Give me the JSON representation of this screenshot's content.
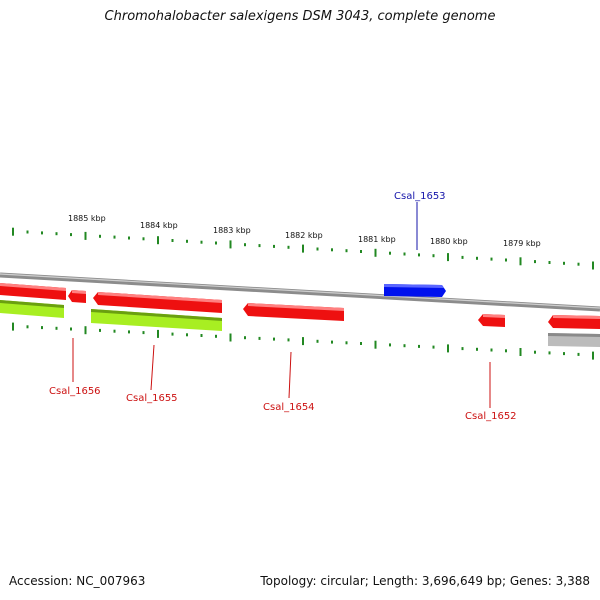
{
  "title": "Chromohalobacter salexigens DSM 3043, complete genome",
  "footer": {
    "accession": "Accession: NC_007963",
    "summary": "Topology: circular; Length: 3,696,649 bp; Genes: 3,388"
  },
  "colors": {
    "forward_gene": "#0011ee",
    "reverse_gene": "#ff1010",
    "cds_feature": "#a8ee22",
    "other_feature": "#b4b4b4",
    "scale_ticks": "#228822",
    "backbone": "#8c8c8c",
    "label_forward": "#1515aa",
    "label_reverse": "#cc1111"
  },
  "scale_labels": [
    "1885 kbp",
    "1884 kbp",
    "1883 kbp",
    "1882 kbp",
    "1881 kbp",
    "1880 kbp",
    "1879 kbp"
  ],
  "genes": [
    {
      "id": "Csal_1656",
      "strand": "reverse"
    },
    {
      "id": "Csal_1655",
      "strand": "reverse"
    },
    {
      "id": "Csal_1654",
      "strand": "reverse"
    },
    {
      "id": "Csal_1653",
      "strand": "forward"
    },
    {
      "id": "Csal_1652",
      "strand": "reverse"
    }
  ]
}
